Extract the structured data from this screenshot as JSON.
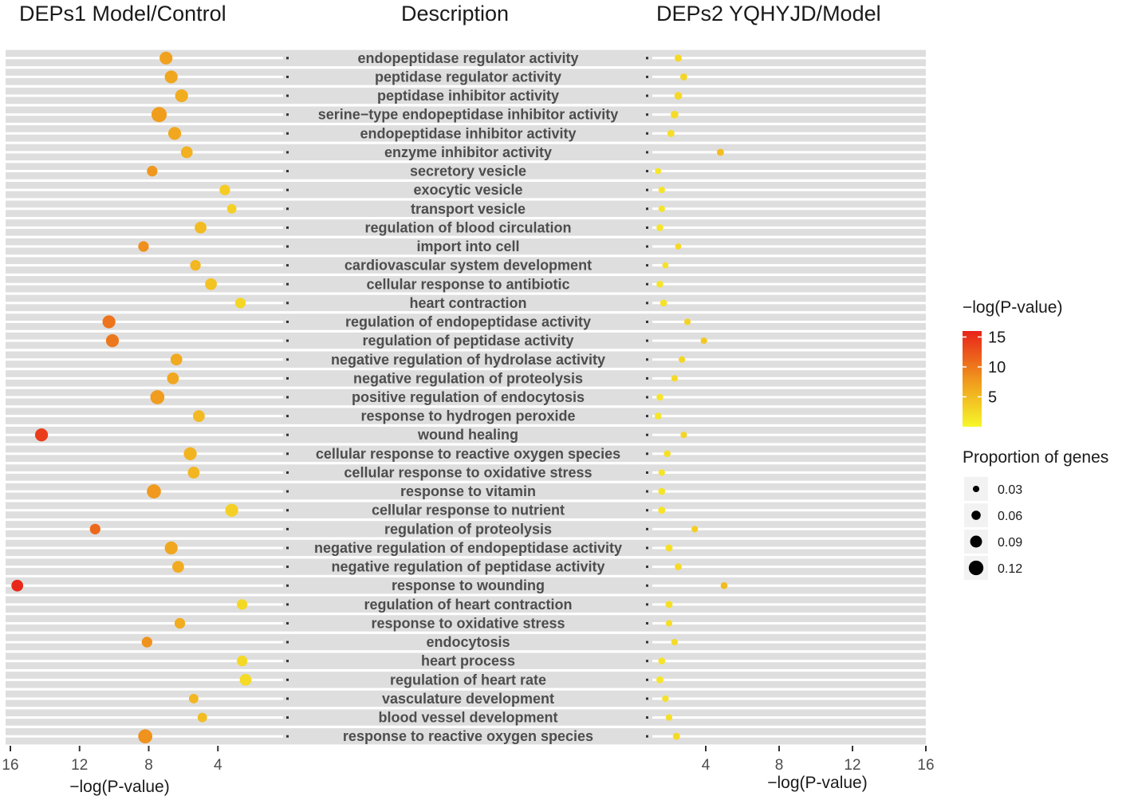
{
  "headers": {
    "left": "DEPs1 Model/Control",
    "center": "Description",
    "right": "DEPs2 YQHYJD/Model"
  },
  "chart_data": {
    "type": "scatter",
    "terms": [
      "endopeptidase regulator activity",
      "peptidase regulator activity",
      "peptidase inhibitor activity",
      "serine−type endopeptidase inhibitor activity",
      "endopeptidase inhibitor activity",
      "enzyme inhibitor activity",
      "secretory vesicle",
      "exocytic vesicle",
      "transport vesicle",
      "regulation of blood circulation",
      "import into cell",
      "cardiovascular system development",
      "cellular response to antibiotic",
      "heart contraction",
      "regulation of endopeptidase activity",
      "regulation of peptidase activity",
      "negative regulation of hydrolase activity",
      "negative regulation of proteolysis",
      "positive regulation of endocytosis",
      "response to hydrogen peroxide",
      "wound healing",
      "cellular response to reactive oxygen species",
      "cellular response to oxidative stress",
      "response to vitamin",
      "cellular response to nutrient",
      "regulation of proteolysis",
      "negative regulation of endopeptidase activity",
      "negative regulation of peptidase activity",
      "response to wounding",
      "regulation of heart contraction",
      "response to oxidative stress",
      "endocytosis",
      "heart process",
      "regulation of heart rate",
      "vasculature development",
      "blood vessel development",
      "response to reactive oxygen species"
    ],
    "left_panel": {
      "title": "DEPs1 Model/Control",
      "xlabel": "−log(P-value)",
      "xlim": [
        16,
        0
      ],
      "ticks": [
        16,
        12,
        8,
        4
      ],
      "neglog_p": [
        7.0,
        6.7,
        6.1,
        7.4,
        6.5,
        5.8,
        7.8,
        3.6,
        3.2,
        5.0,
        8.3,
        5.3,
        4.4,
        2.7,
        10.3,
        10.1,
        6.4,
        6.6,
        7.5,
        5.1,
        14.2,
        5.6,
        5.4,
        7.7,
        3.2,
        11.1,
        6.7,
        6.3,
        15.6,
        2.6,
        6.2,
        8.1,
        2.6,
        2.4,
        5.4,
        4.9,
        8.2
      ],
      "proportion": [
        0.07,
        0.07,
        0.07,
        0.09,
        0.07,
        0.06,
        0.05,
        0.05,
        0.04,
        0.06,
        0.05,
        0.05,
        0.06,
        0.05,
        0.07,
        0.07,
        0.06,
        0.06,
        0.08,
        0.06,
        0.07,
        0.07,
        0.06,
        0.08,
        0.07,
        0.05,
        0.07,
        0.06,
        0.06,
        0.05,
        0.05,
        0.05,
        0.05,
        0.06,
        0.04,
        0.04,
        0.08
      ]
    },
    "right_panel": {
      "title": "DEPs2 YQHYJD/Model",
      "xlabel": "−log(P-value)",
      "xlim": [
        0,
        16
      ],
      "ticks": [
        4,
        8,
        12,
        16
      ],
      "neglog_p": [
        2.5,
        2.8,
        2.5,
        2.3,
        2.1,
        4.8,
        1.4,
        1.6,
        1.6,
        1.5,
        2.5,
        1.8,
        1.5,
        1.7,
        3.0,
        3.9,
        2.7,
        2.3,
        1.5,
        1.4,
        2.8,
        1.9,
        1.6,
        1.6,
        1.6,
        3.4,
        2.0,
        2.5,
        5.0,
        2.0,
        2.0,
        2.3,
        1.6,
        1.5,
        1.8,
        2.0,
        2.4
      ],
      "proportion": [
        0.02,
        0.02,
        0.025,
        0.025,
        0.02,
        0.02,
        0.012,
        0.015,
        0.015,
        0.018,
        0.012,
        0.012,
        0.018,
        0.018,
        0.015,
        0.015,
        0.015,
        0.015,
        0.018,
        0.018,
        0.015,
        0.018,
        0.015,
        0.018,
        0.02,
        0.015,
        0.02,
        0.018,
        0.018,
        0.02,
        0.015,
        0.015,
        0.018,
        0.02,
        0.015,
        0.015,
        0.02
      ]
    },
    "color_legend": {
      "title": "−log(P-value)",
      "breaks": [
        15,
        10,
        5
      ],
      "low_color": "#F7F72A",
      "mid_color": "#F0A01E",
      "high_color": "#E8231A"
    },
    "size_legend": {
      "title": "Proportion of genes",
      "breaks": [
        0.03,
        0.06,
        0.09,
        0.12
      ],
      "labels": [
        "0.03",
        "0.06",
        "0.09",
        "0.12"
      ]
    }
  }
}
